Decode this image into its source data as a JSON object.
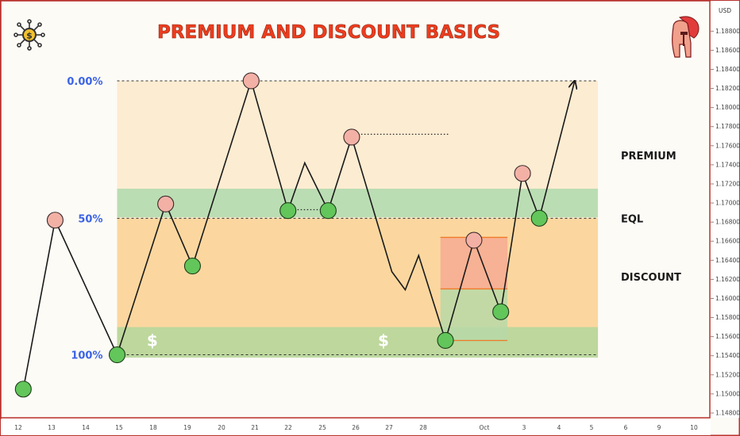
{
  "chart_data": {
    "type": "line",
    "title": "PREMIUM AND DISCOUNT BASICS",
    "currency": "USD",
    "y_ticks": [
      "1.19000",
      "1.18800",
      "1.18600",
      "1.18400",
      "1.18200",
      "1.18000",
      "1.17800",
      "1.17600",
      "1.17400",
      "1.17200",
      "1.17000",
      "1.16800",
      "1.16600",
      "1.16400",
      "1.16200",
      "1.16000",
      "1.15800",
      "1.15600",
      "1.15400",
      "1.15200",
      "1.15000",
      "1.14800"
    ],
    "x_ticks": [
      "12",
      "13",
      "14",
      "15",
      "18",
      "19",
      "20",
      "21",
      "22",
      "25",
      "26",
      "27",
      "28",
      "Oct",
      "3",
      "4",
      "5",
      "6",
      "9",
      "10"
    ],
    "ylim": [
      1.1475,
      1.1911
    ],
    "path_points": [
      {
        "x": 0.15,
        "y": 1.1505
      },
      {
        "x": 1.1,
        "y": 1.1682
      },
      {
        "x": 2.95,
        "y": 1.1541
      },
      {
        "x": 4.4,
        "y": 1.1699
      },
      {
        "x": 5.2,
        "y": 1.1634
      },
      {
        "x": 6.95,
        "y": 1.1828
      },
      {
        "x": 8.05,
        "y": 1.1692
      },
      {
        "x": 8.55,
        "y": 1.1742
      },
      {
        "x": 9.25,
        "y": 1.1692
      },
      {
        "x": 9.95,
        "y": 1.1769
      },
      {
        "x": 11.15,
        "y": 1.1628
      },
      {
        "x": 11.55,
        "y": 1.1609
      },
      {
        "x": 11.95,
        "y": 1.1645
      },
      {
        "x": 12.75,
        "y": 1.1556
      },
      {
        "x": 13.6,
        "y": 1.1661
      },
      {
        "x": 14.4,
        "y": 1.1586
      },
      {
        "x": 15.05,
        "y": 1.1731
      },
      {
        "x": 15.55,
        "y": 1.1684
      },
      {
        "x": 16.6,
        "y": 1.1827
      }
    ],
    "swing_highs": [
      {
        "x": 1.1,
        "y": 1.1682
      },
      {
        "x": 4.4,
        "y": 1.1699
      },
      {
        "x": 6.95,
        "y": 1.1828
      },
      {
        "x": 9.95,
        "y": 1.1769
      },
      {
        "x": 13.6,
        "y": 1.1661
      },
      {
        "x": 15.05,
        "y": 1.1731
      }
    ],
    "swing_lows": [
      {
        "x": 0.15,
        "y": 1.1505
      },
      {
        "x": 2.95,
        "y": 1.1541
      },
      {
        "x": 5.2,
        "y": 1.1634
      },
      {
        "x": 8.05,
        "y": 1.1692
      },
      {
        "x": 9.25,
        "y": 1.1692
      },
      {
        "x": 12.75,
        "y": 1.1556
      },
      {
        "x": 14.4,
        "y": 1.1586
      },
      {
        "x": 15.55,
        "y": 1.1684
      }
    ],
    "fib_levels": [
      {
        "label": "0.00%",
        "y": 1.1828
      },
      {
        "label": "50%",
        "y": 1.1684
      },
      {
        "label": "100%",
        "y": 1.1541
      }
    ],
    "fib_range_x": [
      2.95,
      17.3
    ],
    "eql_zone": {
      "y1": 1.1715,
      "y2": 1.1685
    },
    "discount_demand_zone": {
      "y1": 1.157,
      "y2": 1.1538
    },
    "highs_dotted": {
      "x1": 9.95,
      "x2": 12.85,
      "y": 1.1772
    },
    "eql_dotted": {
      "x1": 8.05,
      "x2": 9.25,
      "y": 1.1693
    },
    "trade_box": {
      "x1": 12.6,
      "x2": 14.6,
      "entry": 1.161,
      "stop": 1.1664,
      "target": 1.1556
    },
    "zone_labels": [
      {
        "text": "PREMIUM",
        "y": 1.175
      },
      {
        "text": "EQL",
        "y": 1.1684
      },
      {
        "text": "DISCOUNT",
        "y": 1.1623
      }
    ],
    "dollar_marks": [
      {
        "text": "$",
        "x": 4.0,
        "y": 1.1556
      },
      {
        "text": "$",
        "x": 10.9,
        "y": 1.1556
      }
    ],
    "colors": {
      "premium": "#fcecd2",
      "discount": "#fbd79f",
      "eql": "#b7dcb1",
      "demand": "#b9d79c",
      "trade_stop": "#f6ad92",
      "trade_target": "#b7d9a7",
      "swing_high": "#f3b1a6",
      "swing_low": "#62c65b",
      "title": "#ee3c1e",
      "fib_label": "#3b63e6",
      "frame": "#b8312c",
      "path": "#1a1a1a"
    }
  }
}
